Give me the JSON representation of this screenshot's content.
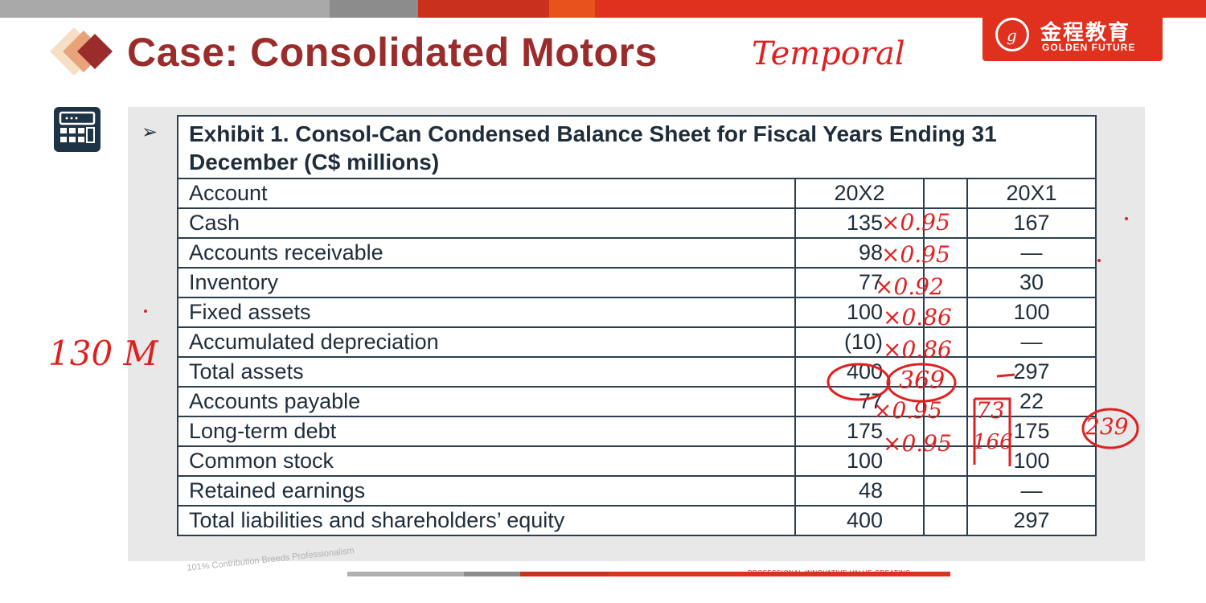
{
  "header": {
    "title": "Case: Consolidated Motors",
    "logo_cn": "金程教育",
    "logo_en": "GOLDEN FUTURE"
  },
  "colors": {
    "title": "#9b2c2c",
    "logo_bg": "#e0301e",
    "table_border": "#2c3e50",
    "annotation": "#e02020"
  },
  "icons": {
    "calculator": "calculator-icon",
    "bullet": "arrow-bullet-icon"
  },
  "exhibit": {
    "bullet": "➢",
    "title": "Exhibit 1. Consol-Can Condensed Balance Sheet for Fiscal Years Ending 31 December (C$ millions)",
    "columns": [
      "Account",
      "20X2",
      "20X1"
    ],
    "rows": [
      {
        "account": "Cash",
        "y2": "135",
        "y1": "167"
      },
      {
        "account": "Accounts receivable",
        "y2": "98",
        "y1": "—"
      },
      {
        "account": "Inventory",
        "y2": "77",
        "y1": "30"
      },
      {
        "account": "Fixed assets",
        "y2": "100",
        "y1": "100"
      },
      {
        "account": "Accumulated depreciation",
        "y2": "(10)",
        "y1": "—"
      },
      {
        "account": "Total assets",
        "y2": "400",
        "y1": "297"
      },
      {
        "account": "Accounts payable",
        "y2": "77",
        "y1": "22"
      },
      {
        "account": "Long-term debt",
        "y2": "175",
        "y1": "175"
      },
      {
        "account": "Common stock",
        "y2": "100",
        "y1": "100"
      },
      {
        "account": "Retained earnings",
        "y2": "48",
        "y1": "—"
      },
      {
        "account": "Total liabilities and shareholders’ equity",
        "y2": "400",
        "y1": "297"
      }
    ]
  },
  "annotations": {
    "temporal": "Temporal",
    "left_note": "130 M",
    "mult_cash": "×0.95",
    "mult_ar": "×0.95",
    "mult_inv": "×0.92",
    "mult_fa": "×0.86",
    "mult_ad": "×0.86",
    "total_translated": "369",
    "mult_ap": "×0.95",
    "mult_ltd": "×0.95",
    "ap_translated": "73",
    "ltd_translated": "166",
    "circled_right": "239"
  },
  "footer": {
    "tagline": "PROFESSIONAL·INNOVATIVE·VALUE·CREATING",
    "watermark": "101% Contribution Breeds Professionalism"
  }
}
